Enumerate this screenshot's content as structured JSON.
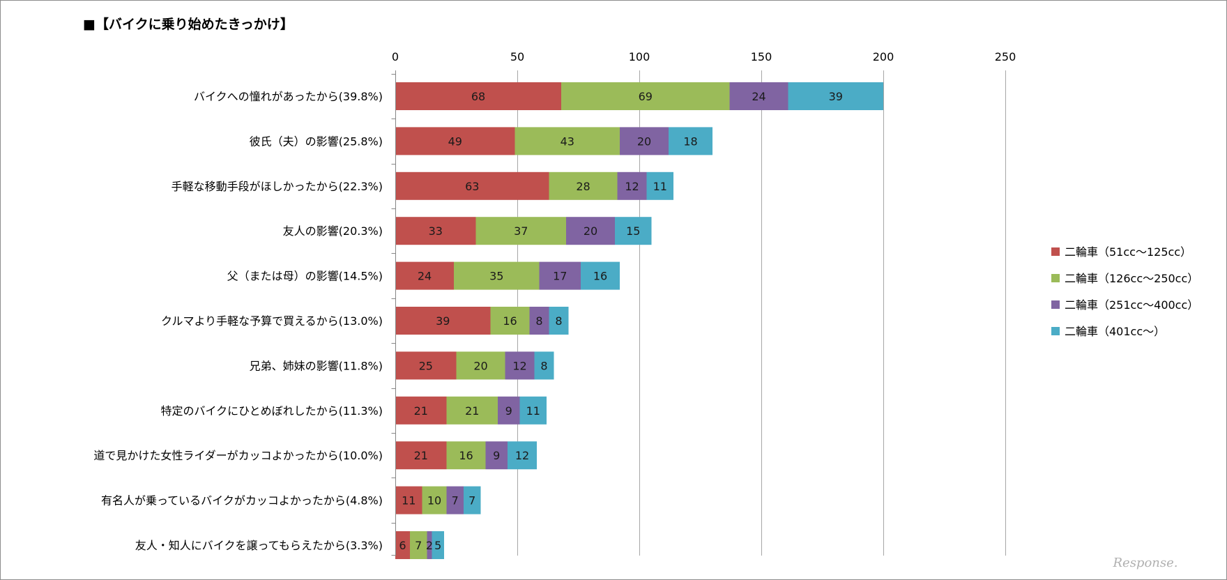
{
  "chart_data": {
    "type": "bar",
    "orientation": "horizontal",
    "stacked": true,
    "title": "■【バイクに乗り始めたきっかけ】",
    "xlabel": "",
    "ylabel": "",
    "xlim": [
      0,
      250
    ],
    "x_ticks": [
      0,
      50,
      100,
      150,
      200,
      250
    ],
    "x_axis_position": "top",
    "grid": true,
    "legend_position": "right",
    "categories": [
      "バイクへの憧れがあったから(39.8%)",
      "彼氏（夫）の影響(25.8%)",
      "手軽な移動手段がほしかったから(22.3%)",
      "友人の影響(20.3%)",
      "父（または母）の影響(14.5%)",
      "クルマより手軽な予算で買えるから(13.0%)",
      "兄弟、姉妹の影響(11.8%)",
      "特定のバイクにひとめぼれしたから(11.3%)",
      "道で見かけた女性ライダーがカッコよかったから(10.0%)",
      "有名人が乗っているバイクがカッコよかったから(4.8%)",
      "友人・知人にバイクを譲ってもらえたから(3.3%)"
    ],
    "series": [
      {
        "name": "二輪車（51cc～125cc）",
        "color": "#c0504d",
        "values": [
          68,
          49,
          63,
          33,
          24,
          39,
          25,
          21,
          21,
          11,
          6
        ]
      },
      {
        "name": "二輪車（126cc～250cc）",
        "color": "#9bbb59",
        "values": [
          69,
          43,
          28,
          37,
          35,
          16,
          20,
          21,
          16,
          10,
          7
        ]
      },
      {
        "name": "二輪車（251cc～400cc）",
        "color": "#8064a2",
        "values": [
          24,
          20,
          12,
          20,
          17,
          8,
          12,
          9,
          9,
          7,
          2
        ]
      },
      {
        "name": "二輪車（401cc～）",
        "color": "#4bacc6",
        "values": [
          39,
          18,
          11,
          15,
          16,
          8,
          8,
          11,
          12,
          7,
          5
        ]
      }
    ]
  },
  "watermark": {
    "text": "Response."
  },
  "colors": {
    "grid": "#a6a6a6",
    "axis": "#868686",
    "frame": "#8c8c8c"
  }
}
